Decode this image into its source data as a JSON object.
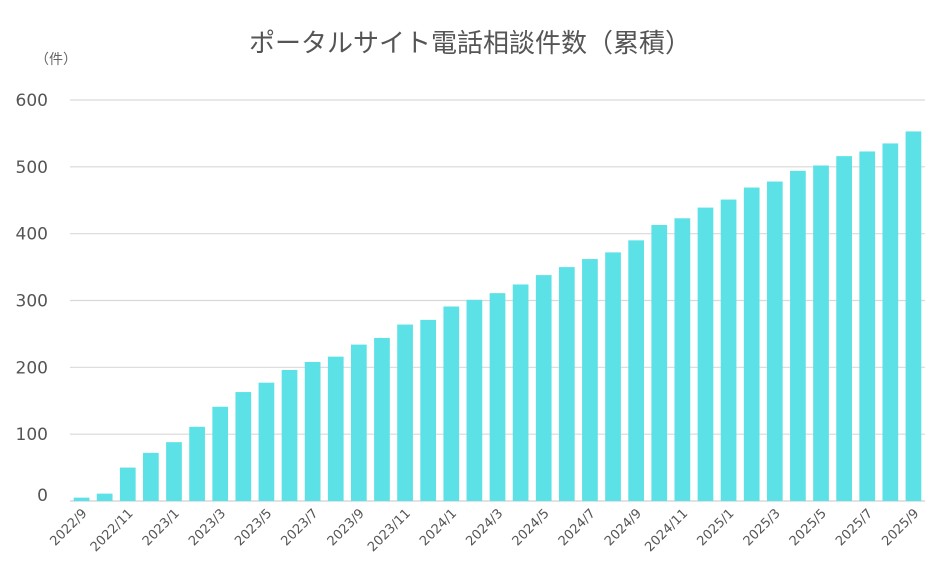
{
  "chart_data": {
    "type": "bar",
    "title": "ポータルサイト電話相談件数（累積）",
    "unit_label": "（件）",
    "xlabel": "",
    "ylabel": "",
    "ylim": [
      0,
      600
    ],
    "yticks": [
      0,
      100,
      200,
      300,
      400,
      500,
      600
    ],
    "grid": true,
    "bar_color": "#5ce1e6",
    "grid_color": "#d9d9d9",
    "categories": [
      "2022/9",
      "2022/10",
      "2022/11",
      "2022/12",
      "2023/1",
      "2023/2",
      "2023/3",
      "2023/4",
      "2023/5",
      "2023/6",
      "2023/7",
      "2023/8",
      "2023/9",
      "2023/10",
      "2023/11",
      "2023/12",
      "2024/1",
      "2024/2",
      "2024/3",
      "2024/4",
      "2024/5",
      "2024/6",
      "2024/7",
      "2024/8",
      "2024/9",
      "2024/10",
      "2024/11",
      "2024/12",
      "2025/1",
      "2025/2",
      "2025/3",
      "2025/4",
      "2025/5",
      "2025/6",
      "2025/7",
      "2025/8",
      "2025/9"
    ],
    "tick_labels": [
      "2022/9",
      "2022/11",
      "2023/1",
      "2023/3",
      "2023/5",
      "2023/7",
      "2023/9",
      "2023/11",
      "2024/1",
      "2024/3",
      "2024/5",
      "2024/7",
      "2024/9",
      "2024/11",
      "2025/1",
      "2025/3",
      "2025/5",
      "2025/7",
      "2025/9"
    ],
    "values": [
      5,
      11,
      50,
      72,
      88,
      111,
      141,
      163,
      177,
      196,
      208,
      216,
      234,
      244,
      264,
      271,
      291,
      301,
      311,
      324,
      338,
      350,
      362,
      372,
      390,
      413,
      423,
      439,
      451,
      469,
      478,
      494,
      502,
      516,
      523,
      535,
      553
    ]
  }
}
